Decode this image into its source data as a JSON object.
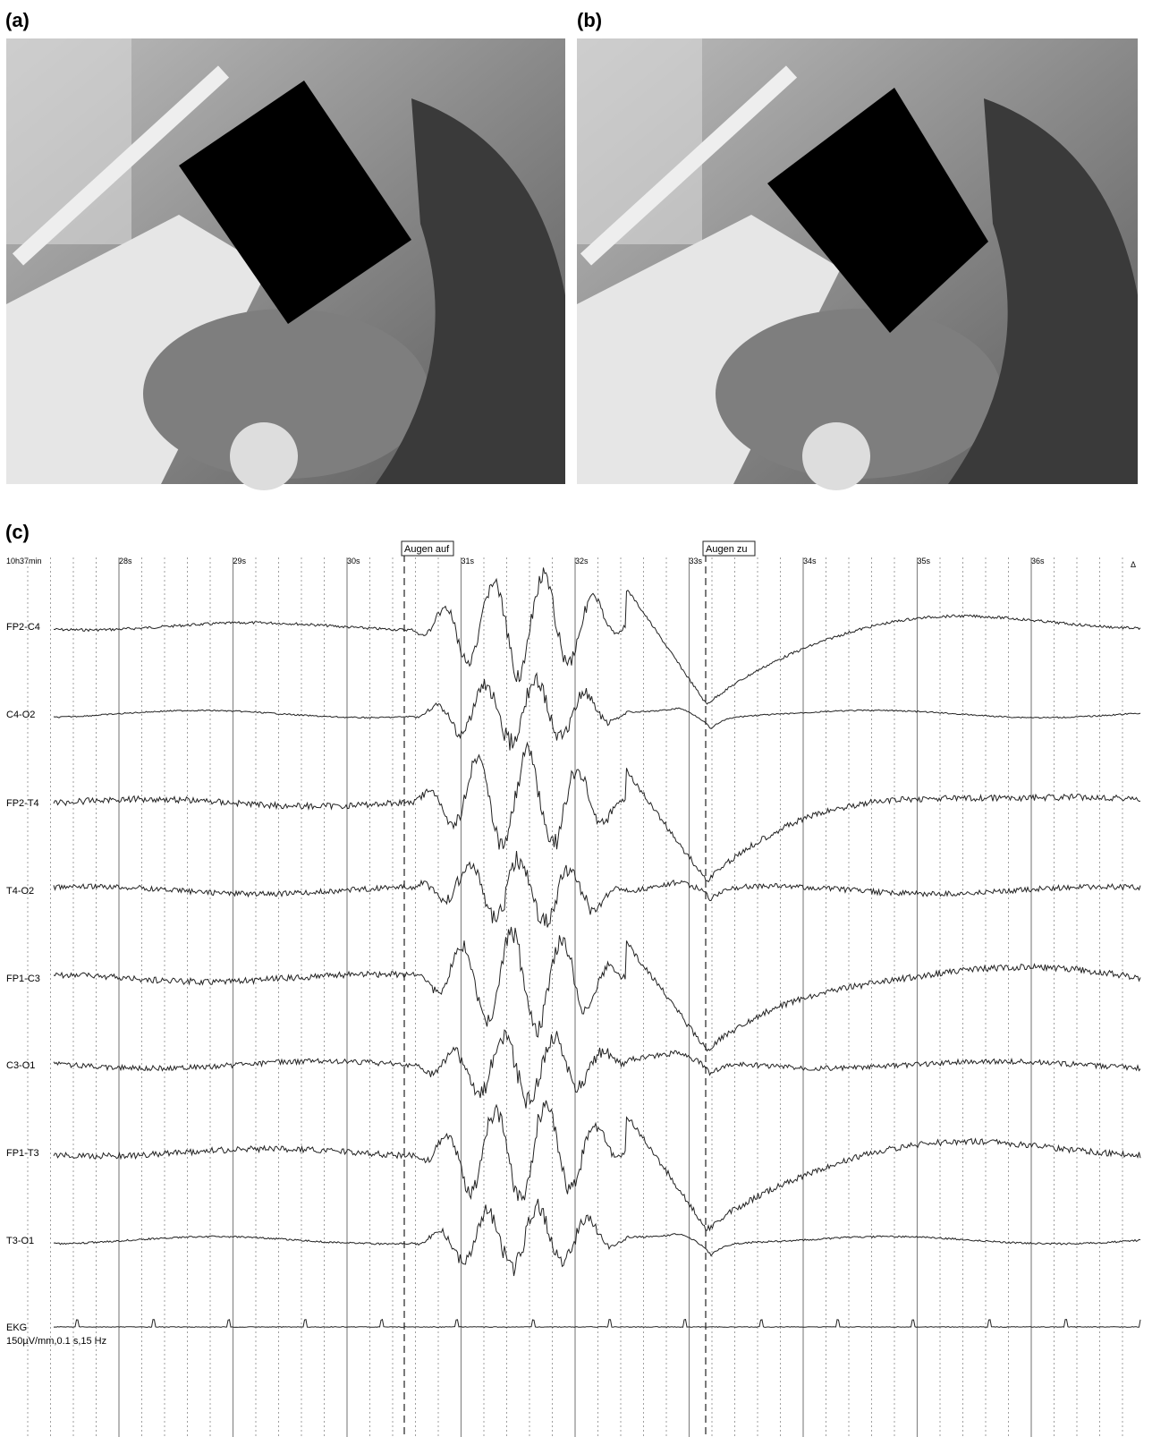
{
  "panels": {
    "a": {
      "label": "(a)"
    },
    "b": {
      "label": "(b)"
    }
  },
  "eeg": {
    "label": "(c)",
    "start_time": "10h37min",
    "time_marks": [
      "28s",
      "29s",
      "30s",
      "31s",
      "32s",
      "33s",
      "34s",
      "35s",
      "36s"
    ],
    "events": [
      "Augen auf",
      "Augen zu"
    ],
    "channels": [
      "FP2-C4",
      "C4-O2",
      "FP2-T4",
      "T4-O2",
      "FP1-C3",
      "C3-O1",
      "FP1-T3",
      "T3-O1",
      "EKG"
    ],
    "scale": "150µV/mm,0.1 s,15 Hz",
    "marker": "Δ"
  }
}
